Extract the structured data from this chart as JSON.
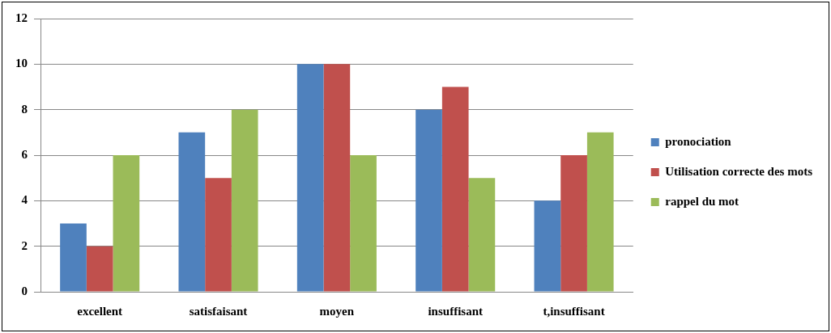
{
  "chart_data": {
    "type": "bar",
    "categories": [
      "excellent",
      "satisfaisant",
      "moyen",
      "insuffisant",
      "t,insuffisant"
    ],
    "series": [
      {
        "name": "pronociation",
        "color": "#4f81bd",
        "values": [
          3,
          7,
          10,
          8,
          4
        ]
      },
      {
        "name": "Utilisation correcte des mots",
        "color": "#c0504d",
        "values": [
          2,
          5,
          10,
          9,
          6
        ]
      },
      {
        "name": "rappel du mot",
        "color": "#9bbb59",
        "values": [
          6,
          8,
          6,
          5,
          7
        ]
      }
    ],
    "ylim": [
      0,
      12
    ],
    "yticks": [
      0,
      2,
      4,
      6,
      8,
      10,
      12
    ],
    "grid": "y",
    "legend": "right"
  }
}
